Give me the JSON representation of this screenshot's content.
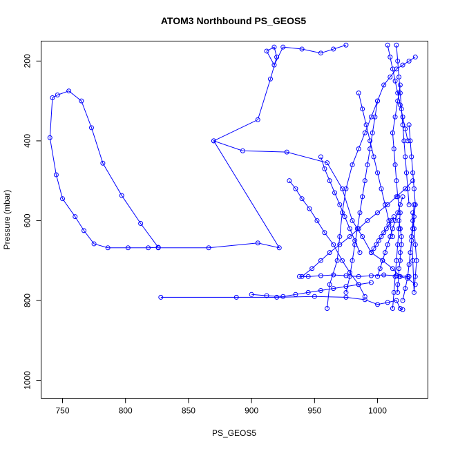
{
  "chart_data": {
    "type": "scatter",
    "title": "ATOM3 Northbound PS_GEOS5",
    "xlabel": "PS_GEOS5",
    "ylabel": "Pressure (mbar)",
    "xlim": [
      733,
      1040
    ],
    "ylim": [
      1045,
      150
    ],
    "y_reversed": true,
    "grid": false,
    "x_ticks": [
      750,
      800,
      850,
      900,
      950,
      1000
    ],
    "y_ticks": [
      200,
      400,
      600,
      800,
      1000
    ],
    "series_color": "#0000ff",
    "series": [
      {
        "name": "",
        "mode": "lines+markers",
        "x": [
          826,
          866,
          905,
          922,
          870,
          893,
          928,
          960,
          972,
          980,
          988,
          995,
          1004,
          1012,
          1018,
          1024,
          1030
        ],
        "y": [
          668,
          668,
          656,
          668,
          400,
          425,
          428,
          455,
          520,
          600,
          640,
          680,
          700,
          720,
          740,
          745,
          760
        ]
      },
      {
        "name": "",
        "mode": "lines+markers",
        "x": [
          826,
          818,
          802,
          786,
          775,
          767,
          760,
          750,
          745,
          740,
          742,
          746,
          755,
          765,
          773,
          782,
          797,
          812,
          826
        ],
        "y": [
          667,
          668,
          668,
          668,
          658,
          625,
          590,
          545,
          485,
          392,
          292,
          285,
          275,
          300,
          367,
          456,
          537,
          607,
          667
        ]
      },
      {
        "name": "",
        "mode": "lines+markers",
        "x": [
          828,
          888,
          920,
          950,
          975,
          990,
          1000,
          1008,
          1015,
          1018,
          1020
        ],
        "y": [
          792,
          792,
          792,
          790,
          792,
          798,
          810,
          805,
          800,
          820,
          823
        ]
      },
      {
        "name": "",
        "mode": "lines+markers",
        "x": [
          870,
          905,
          915,
          920,
          918,
          912,
          918,
          925,
          940,
          955,
          965,
          975
        ],
        "y": [
          400,
          347,
          245,
          190,
          165,
          175,
          210,
          165,
          170,
          180,
          170,
          160
        ]
      },
      {
        "name": "",
        "mode": "lines+markers",
        "x": [
          960,
          962,
          968,
          970,
          972,
          975,
          980,
          985,
          990,
          995,
          1000,
          1005,
          1010,
          1015,
          1020,
          1025,
          1030
        ],
        "y": [
          820,
          760,
          700,
          640,
          580,
          520,
          460,
          420,
          380,
          340,
          300,
          260,
          240,
          220,
          210,
          200,
          190
        ]
      },
      {
        "name": "",
        "mode": "lines+markers",
        "x": [
          940,
          948,
          955,
          962,
          970,
          978,
          985,
          992,
          1000,
          1008,
          1015,
          1022,
          1028
        ],
        "y": [
          740,
          720,
          700,
          680,
          660,
          640,
          620,
          600,
          580,
          560,
          540,
          520,
          500
        ]
      },
      {
        "name": "",
        "mode": "lines+markers",
        "x": [
          930,
          935,
          940,
          946,
          952,
          958,
          965,
          972,
          978,
          985,
          990
        ],
        "y": [
          500,
          520,
          545,
          570,
          600,
          630,
          660,
          700,
          730,
          760,
          790
        ]
      },
      {
        "name": "",
        "mode": "lines+markers",
        "x": [
          1012,
          1013,
          1014,
          1015,
          1016,
          1017,
          1018,
          1016,
          1015,
          1014,
          1013,
          1012,
          1014,
          1016,
          1018
        ],
        "y": [
          820,
          780,
          740,
          700,
          660,
          620,
          580,
          540,
          500,
          460,
          420,
          380,
          340,
          300,
          260
        ]
      },
      {
        "name": "",
        "mode": "lines+markers",
        "x": [
          1020,
          1022,
          1024,
          1025,
          1026,
          1027,
          1028,
          1029,
          1030,
          1029,
          1028,
          1027,
          1026,
          1025
        ],
        "y": [
          800,
          770,
          740,
          710,
          680,
          650,
          620,
          590,
          560,
          520,
          480,
          440,
          400,
          360
        ]
      },
      {
        "name": "",
        "mode": "lines+markers",
        "x": [
          975,
          978,
          980,
          982,
          984,
          986,
          988,
          990,
          992,
          994,
          996,
          998,
          1000
        ],
        "y": [
          780,
          740,
          700,
          660,
          620,
          580,
          540,
          500,
          460,
          420,
          380,
          340,
          300
        ]
      },
      {
        "name": "",
        "mode": "lines+markers",
        "x": [
          1000,
          1002,
          1004,
          1006,
          1008,
          1010,
          1012,
          1014,
          1016,
          1018,
          1020
        ],
        "y": [
          740,
          720,
          700,
          680,
          660,
          640,
          620,
          600,
          580,
          560,
          540
        ]
      },
      {
        "name": "",
        "mode": "lines+markers",
        "x": [
          938,
          945,
          955,
          965,
          975,
          985,
          995,
          1005,
          1015,
          1025
        ],
        "y": [
          740,
          740,
          738,
          736,
          738,
          740,
          738,
          736,
          738,
          740
        ]
      },
      {
        "name": "",
        "mode": "lines+markers",
        "x": [
          955,
          958,
          962,
          966,
          970,
          974,
          978,
          982,
          986
        ],
        "y": [
          440,
          470,
          500,
          530,
          560,
          590,
          620,
          650,
          680
        ]
      },
      {
        "name": "",
        "mode": "lines+markers",
        "x": [
          985,
          988,
          991,
          994,
          997,
          1000,
          1003,
          1006,
          1009,
          1012
        ],
        "y": [
          280,
          320,
          360,
          400,
          440,
          480,
          520,
          560,
          600,
          640
        ]
      },
      {
        "name": "",
        "mode": "lines+markers",
        "x": [
          1015,
          1016,
          1017,
          1018,
          1019,
          1020,
          1021,
          1022,
          1023,
          1024,
          1025
        ],
        "y": [
          160,
          200,
          240,
          280,
          320,
          360,
          400,
          440,
          480,
          520,
          560
        ]
      },
      {
        "name": "",
        "mode": "lines+markers",
        "x": [
          1008,
          1010,
          1012,
          1014,
          1016,
          1018,
          1020,
          1022,
          1024
        ],
        "y": [
          160,
          190,
          220,
          250,
          280,
          310,
          340,
          370,
          400
        ]
      },
      {
        "name": "",
        "mode": "lines+markers",
        "x": [
          1028,
          1029,
          1030,
          1031,
          1030,
          1029,
          1028,
          1027,
          1028,
          1029
        ],
        "y": [
          580,
          620,
          660,
          700,
          740,
          780,
          700,
          640,
          600,
          560
        ]
      },
      {
        "name": "",
        "mode": "lines+markers",
        "x": [
          900,
          912,
          925,
          935,
          945,
          955,
          965,
          975,
          985,
          995
        ],
        "y": [
          785,
          788,
          790,
          785,
          780,
          775,
          770,
          765,
          760,
          755
        ]
      },
      {
        "name": "",
        "mode": "lines+markers",
        "x": [
          1016,
          1016,
          1017,
          1017,
          1018,
          1018,
          1019,
          1019,
          1018,
          1017
        ],
        "y": [
          780,
          760,
          740,
          720,
          700,
          680,
          660,
          640,
          620,
          600
        ]
      },
      {
        "name": "",
        "mode": "lines+markers",
        "x": [
          995,
          997,
          999,
          1001,
          1003,
          1005,
          1007,
          1009,
          1011,
          1013
        ],
        "y": [
          680,
          670,
          660,
          650,
          640,
          630,
          620,
          610,
          600,
          590
        ]
      }
    ]
  }
}
